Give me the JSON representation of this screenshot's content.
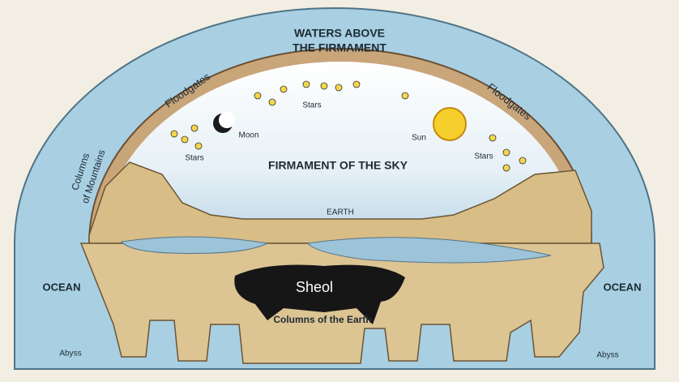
{
  "title_lines": [
    "WATERS ABOVE",
    "THE FIRMAMENT"
  ],
  "floodgates": [
    "Floodgates",
    "Floodgates"
  ],
  "columns_of_mountains": [
    "Columns",
    "of Mountains"
  ],
  "celestial": {
    "moon": "Moon",
    "sun": "Sun",
    "stars": [
      "Stars",
      "Stars",
      "Stars"
    ]
  },
  "firmament": "FIRMAMENT OF THE SKY",
  "earth": "EARTH",
  "ocean": [
    "OCEAN",
    "OCEAN"
  ],
  "sheol": "Sheol",
  "columns_of_the_earth": "Columns of the Earth",
  "abyss": [
    "Abyss",
    "Abyss"
  ]
}
